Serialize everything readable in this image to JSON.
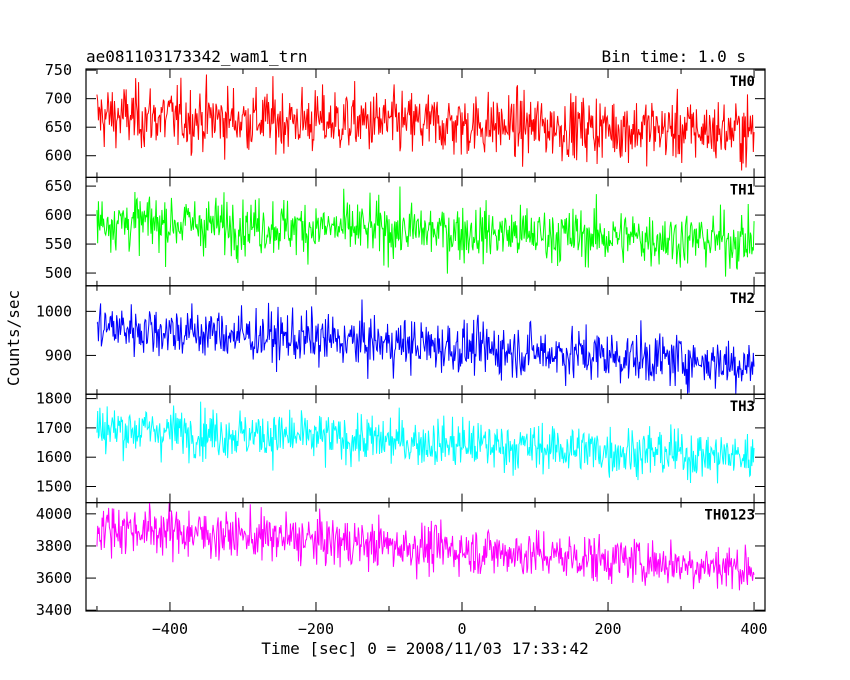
{
  "chart_data": {
    "type": "line",
    "title": "ae081103173342_wam1_trn",
    "subtitle": "Bin time: 1.0 s",
    "xlabel": "Time [sec] 0 = 2008/11/03 17:33:42",
    "ylabel": "Counts/sec",
    "xlim": [
      -515,
      415
    ],
    "x_ticks": [
      -400,
      -200,
      0,
      200,
      400
    ],
    "x_range": [
      -500,
      400
    ],
    "bin_time": 1.0,
    "grid": false,
    "panels": [
      {
        "name": "TH0",
        "color": "#ff0000",
        "ylim": [
          562,
          752
        ],
        "y_ticks": [
          600,
          650,
          700,
          750
        ],
        "mean_start": 670,
        "mean_end": 642,
        "noise": 28
      },
      {
        "name": "TH1",
        "color": "#00ff00",
        "ylim": [
          478,
          665
        ],
        "y_ticks": [
          500,
          550,
          600,
          650
        ],
        "mean_start": 590,
        "mean_end": 555,
        "noise": 24
      },
      {
        "name": "TH2",
        "color": "#0000ff",
        "ylim": [
          812,
          1058
        ],
        "y_ticks": [
          900,
          1000
        ],
        "mean_start": 965,
        "mean_end": 880,
        "noise": 30
      },
      {
        "name": "TH3",
        "color": "#00ffff",
        "ylim": [
          1445,
          1815
        ],
        "y_ticks": [
          1500,
          1600,
          1700,
          1800
        ],
        "mean_start": 1700,
        "mean_end": 1600,
        "noise": 42
      },
      {
        "name": "TH0123",
        "color": "#ff00ff",
        "ylim": [
          3395,
          4070
        ],
        "y_ticks": [
          3400,
          3600,
          3800,
          4000
        ],
        "mean_start": 3920,
        "mean_end": 3660,
        "noise": 75
      }
    ]
  }
}
